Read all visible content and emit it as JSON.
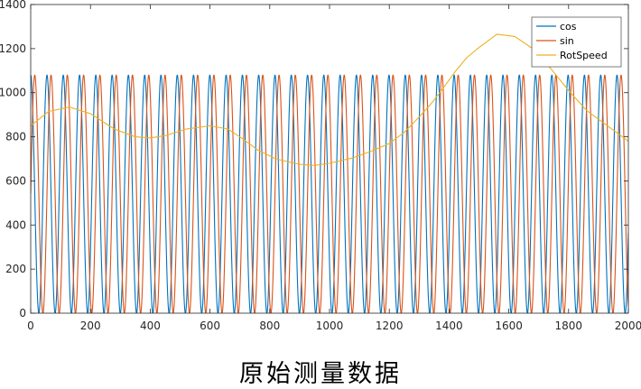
{
  "chart_data": {
    "type": "line",
    "xlim": [
      0,
      2000
    ],
    "ylim": [
      0,
      1400
    ],
    "x_ticks": [
      0,
      200,
      400,
      600,
      800,
      1000,
      1200,
      1400,
      1600,
      1800,
      2000
    ],
    "y_ticks": [
      0,
      200,
      400,
      600,
      800,
      1000,
      1200,
      1400
    ],
    "grid": false,
    "legend_position": "top-right",
    "series": [
      {
        "name": "cos",
        "color": "#0072BD",
        "waveform": {
          "min": 0,
          "max": 1080,
          "period": 54.5,
          "phase_x": 0
        }
      },
      {
        "name": "sin",
        "color": "#D95319",
        "waveform": {
          "min": 0,
          "max": 1080,
          "period": 54.5,
          "phase_x": 13.6
        }
      },
      {
        "name": "RotSpeed",
        "color": "#EDB120",
        "x": [
          0,
          60,
          130,
          200,
          280,
          350,
          400,
          450,
          520,
          600,
          660,
          700,
          760,
          820,
          900,
          950,
          1000,
          1080,
          1150,
          1200,
          1250,
          1300,
          1340,
          1380,
          1420,
          1460,
          1500,
          1560,
          1620,
          1680,
          1740,
          1800,
          1860,
          1920,
          1960,
          2000
        ],
        "y": [
          850,
          915,
          935,
          905,
          835,
          800,
          795,
          805,
          835,
          850,
          835,
          800,
          740,
          700,
          675,
          670,
          680,
          705,
          740,
          770,
          820,
          890,
          950,
          1020,
          1095,
          1160,
          1205,
          1265,
          1255,
          1200,
          1110,
          1010,
          920,
          860,
          820,
          780
        ]
      }
    ],
    "caption": "原始测量数据"
  }
}
